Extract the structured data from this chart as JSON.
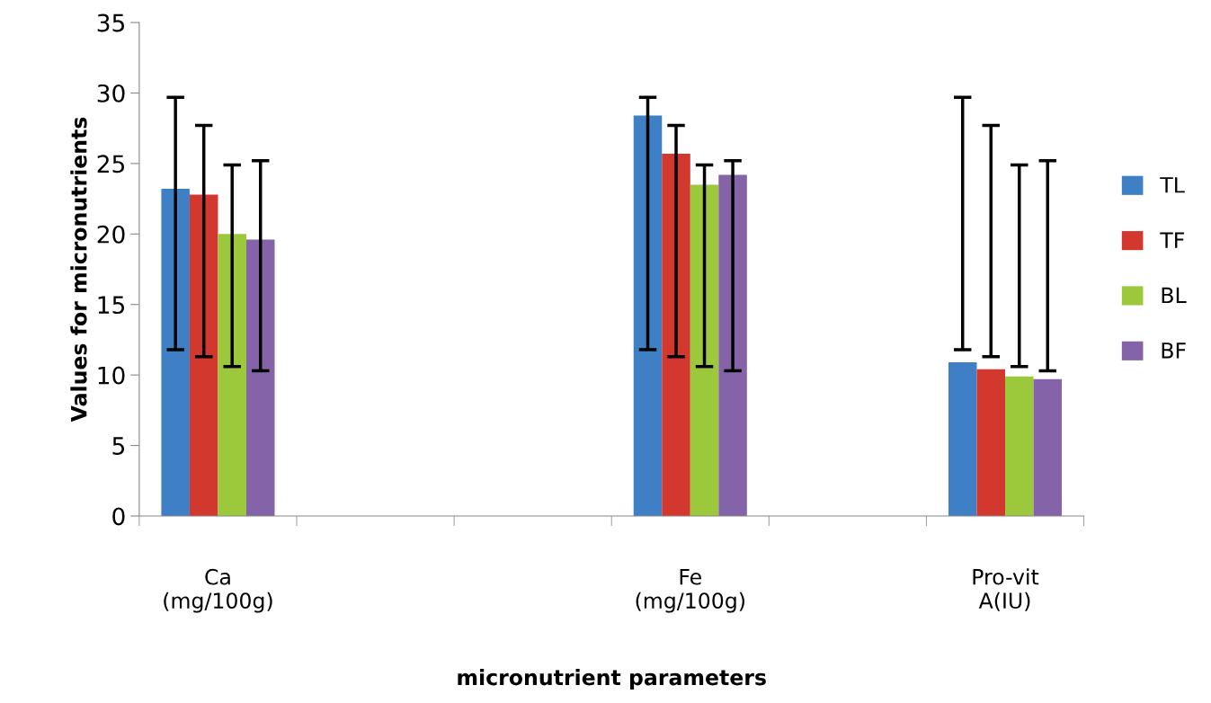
{
  "chart_data": {
    "type": "bar",
    "xlabel": "micronutrient parameters",
    "ylabel": "Values for micronutrients",
    "categories": [
      "Ca\n(mg/100g)",
      null,
      null,
      "Fe\n(mg/100g)",
      null,
      "Pro-vit\nA(IU)"
    ],
    "series": [
      {
        "name": "TL",
        "color": "#3f7fc6",
        "values": [
          23.2,
          null,
          null,
          28.4,
          null,
          10.9
        ],
        "errors": [
          [
            11.8,
            29.7
          ],
          null,
          null,
          [
            11.8,
            29.7
          ],
          null,
          [
            11.8,
            29.7
          ]
        ]
      },
      {
        "name": "TF",
        "color": "#d2382e",
        "values": [
          22.8,
          null,
          null,
          25.7,
          null,
          10.4
        ],
        "errors": [
          [
            11.3,
            27.7
          ],
          null,
          null,
          [
            11.3,
            27.7
          ],
          null,
          [
            11.3,
            27.7
          ]
        ]
      },
      {
        "name": "BL",
        "color": "#9cc83c",
        "values": [
          20.0,
          null,
          null,
          23.5,
          null,
          9.9
        ],
        "errors": [
          [
            10.6,
            24.9
          ],
          null,
          null,
          [
            10.6,
            24.9
          ],
          null,
          [
            10.6,
            24.9
          ]
        ]
      },
      {
        "name": "BF",
        "color": "#8463a8",
        "values": [
          19.6,
          null,
          null,
          24.2,
          null,
          9.7
        ],
        "errors": [
          [
            10.3,
            25.2
          ],
          null,
          null,
          [
            10.3,
            25.2
          ],
          null,
          [
            10.3,
            25.2
          ]
        ]
      }
    ],
    "ylim": [
      0,
      35
    ],
    "yticks": [
      0,
      5,
      10,
      15,
      20,
      25,
      30,
      35
    ],
    "grid": false,
    "legend": "right"
  }
}
